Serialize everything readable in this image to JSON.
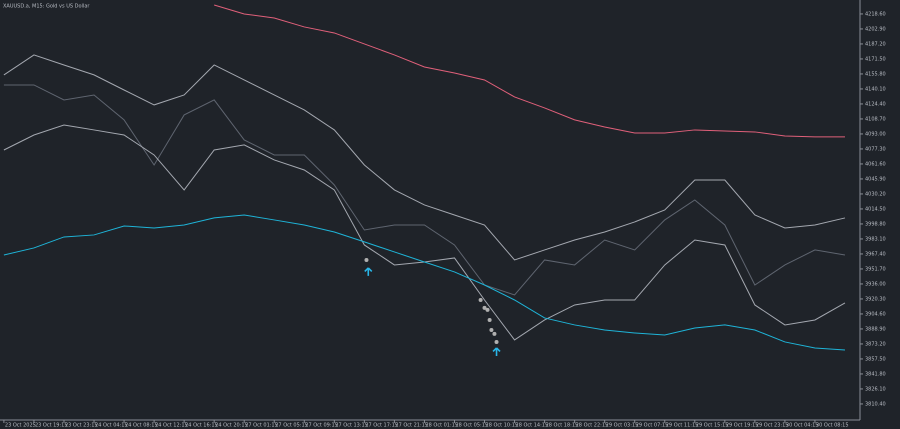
{
  "chart_data": {
    "type": "line",
    "title": "XAUUSD.a, M15:  Gold vs US Dollar",
    "background": "#1f2329",
    "grid": false,
    "xlim": [
      -0.13,
      28.5
    ],
    "ylim": [
      3793.6,
      4233.2
    ],
    "xticks": [
      {
        "value": 0,
        "label": "23 Oct 2025"
      },
      {
        "value": 1,
        "label": "23 Oct 19:15"
      },
      {
        "value": 2,
        "label": "23 Oct 23:15"
      },
      {
        "value": 3,
        "label": "24 Oct 04:15"
      },
      {
        "value": 4,
        "label": "24 Oct 08:15"
      },
      {
        "value": 5,
        "label": "24 Oct 12:15"
      },
      {
        "value": 6,
        "label": "24 Oct 16:15"
      },
      {
        "value": 7,
        "label": "24 Oct 20:15"
      },
      {
        "value": 8,
        "label": "27 Oct 01:15"
      },
      {
        "value": 9,
        "label": "27 Oct 05:15"
      },
      {
        "value": 10,
        "label": "27 Oct 09:15"
      },
      {
        "value": 11,
        "label": "27 Oct 13:15"
      },
      {
        "value": 12,
        "label": "27 Oct 17:15"
      },
      {
        "value": 13,
        "label": "27 Oct 21:15"
      },
      {
        "value": 14,
        "label": "28 Oct 01:15"
      },
      {
        "value": 15,
        "label": "28 Oct 05:15"
      },
      {
        "value": 16,
        "label": "28 Oct 10:15"
      },
      {
        "value": 17,
        "label": "28 Oct 14:15"
      },
      {
        "value": 18,
        "label": "28 Oct 18:15"
      },
      {
        "value": 19,
        "label": "28 Oct 22:15"
      },
      {
        "value": 20,
        "label": "29 Oct 03:15"
      },
      {
        "value": 21,
        "label": "29 Oct 07:15"
      },
      {
        "value": 22,
        "label": "29 Oct 11:15"
      },
      {
        "value": 23,
        "label": "29 Oct 15:15"
      },
      {
        "value": 24,
        "label": "29 Oct 19:15"
      },
      {
        "value": 25,
        "label": "29 Oct 23:15"
      },
      {
        "value": 26,
        "label": "30 Oct 04:15"
      },
      {
        "value": 27,
        "label": "30 Oct 08:15"
      }
    ],
    "yticks": [
      {
        "value": 4218.6,
        "label": "4218.60"
      },
      {
        "value": 4202.9,
        "label": "4202.90"
      },
      {
        "value": 4187.2,
        "label": "4187.20"
      },
      {
        "value": 4171.5,
        "label": "4171.50"
      },
      {
        "value": 4155.8,
        "label": "4155.80"
      },
      {
        "value": 4140.1,
        "label": "4140.10"
      },
      {
        "value": 4124.4,
        "label": "4124.40"
      },
      {
        "value": 4108.7,
        "label": "4108.70"
      },
      {
        "value": 4093,
        "label": "4093.00"
      },
      {
        "value": 4077.3,
        "label": "4077.30"
      },
      {
        "value": 4061.6,
        "label": "4061.60"
      },
      {
        "value": 4045.9,
        "label": "4045.90"
      },
      {
        "value": 4030.2,
        "label": "4030.20"
      },
      {
        "value": 4014.5,
        "label": "4014.50"
      },
      {
        "value": 3998.8,
        "label": "3998.80"
      },
      {
        "value": 3983.1,
        "label": "3983.10"
      },
      {
        "value": 3967.4,
        "label": "3967.40"
      },
      {
        "value": 3951.7,
        "label": "3951.70"
      },
      {
        "value": 3936,
        "label": "3936.00"
      },
      {
        "value": 3920.3,
        "label": "3920.30"
      },
      {
        "value": 3904.6,
        "label": "3904.60"
      },
      {
        "value": 3888.9,
        "label": "3888.90"
      },
      {
        "value": 3873.2,
        "label": "3873.20"
      },
      {
        "value": 3857.5,
        "label": "3857.50"
      },
      {
        "value": 3841.8,
        "label": "3841.80"
      },
      {
        "value": 3826.1,
        "label": "3826.10"
      },
      {
        "value": 3810.4,
        "label": "3810.40"
      }
    ],
    "x": [
      0,
      1,
      2,
      3,
      4,
      5,
      6,
      7,
      8,
      9,
      10,
      11,
      12,
      13,
      14,
      15,
      16,
      17,
      18,
      19,
      20,
      21,
      22,
      23,
      24,
      25,
      26,
      27,
      28
    ],
    "series": [
      {
        "color": "#5f6570",
        "values": [
          4144.3,
          4144.3,
          4128.6,
          4133.8,
          4107.7,
          4060.5,
          4112.9,
          4128.6,
          4086.7,
          4071.0,
          4071.0,
          4039.6,
          3992.5,
          3997.7,
          3997.7,
          3976.8,
          3934.9,
          3924.5,
          3961.1,
          3955.9,
          3982.0,
          3971.6,
          4003.0,
          4023.9,
          3997.7,
          3934.9,
          3955.9,
          3971.6,
          3966.3
        ]
      },
      {
        "color": "#a4a8b0",
        "values": [
          4154.8,
          4175.7,
          4165.2,
          4154.8,
          4139.0,
          4123.4,
          4133.8,
          4165.2,
          4149.5,
          4133.8,
          4118.1,
          4097.2,
          4060.5,
          4034.4,
          4018.7,
          4008.2,
          3997.7,
          3961.1,
          3971.6,
          3982.0,
          3990.4,
          4000.9,
          4013.4,
          4044.8,
          4044.8,
          4008.2,
          3994.6,
          3997.7,
          4005.1
        ]
      },
      {
        "color": "#a4a8b0",
        "values": [
          4076.2,
          4091.9,
          4102.4,
          4097.2,
          4091.9,
          4071.0,
          4034.4,
          4076.2,
          4081.5,
          4065.8,
          4055.3,
          4034.4,
          3976.8,
          3955.9,
          3959.0,
          3963.2,
          3919.2,
          3877.4,
          3898.3,
          3914.0,
          3919.2,
          3919.2,
          3955.9,
          3982.0,
          3976.8,
          3914.0,
          3893.1,
          3898.3,
          3916.1
        ]
      },
      {
        "color": "#e0607a",
        "values": [
          null,
          null,
          null,
          null,
          null,
          null,
          null,
          4228.0,
          4218.6,
          4214.4,
          4205.0,
          4198.7,
          4187.2,
          4175.7,
          4163.1,
          4156.8,
          4149.5,
          4131.7,
          4120.2,
          4107.7,
          4100.3,
          4094.0,
          4094.0,
          4097.2,
          4096.1,
          4095.1,
          4090.9,
          4089.9,
          4089.9
        ]
      },
      {
        "color": "#1fb4d8",
        "values": [
          3966.3,
          3973.7,
          3985.2,
          3987.3,
          3996.7,
          3994.6,
          3997.7,
          4005.1,
          4008.2,
          4003.0,
          3997.7,
          3990.4,
          3980.0,
          3969.5,
          3959.0,
          3948.6,
          3934.9,
          3919.2,
          3900.4,
          3893.1,
          3887.8,
          3884.7,
          3882.6,
          3889.9,
          3893.1,
          3887.8,
          3875.3,
          3869.0,
          3866.9
        ]
      }
    ],
    "dots": {
      "color": "#b0b0b0",
      "x": [
        12.07,
        15.87,
        16.0,
        16.1,
        16.17,
        16.23,
        16.33,
        16.4
      ],
      "values": [
        3961.1,
        3919.2,
        3910.9,
        3908.8,
        3898.3,
        3887.8,
        3883.7,
        3875.3
      ]
    },
    "arrows": {
      "color": "#29b6e8",
      "x": [
        12.13,
        16.4
      ],
      "values": [
        3948.6,
        3864.8
      ]
    }
  }
}
